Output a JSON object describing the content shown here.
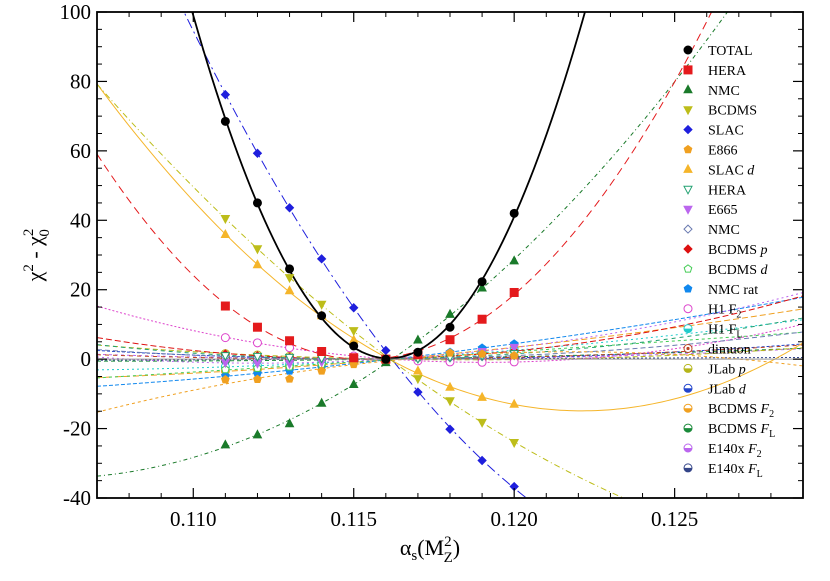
{
  "chart_data": {
    "type": "scatter",
    "title": "",
    "xlabel": "αs(MZ2)",
    "ylabel": "χ2 - χ02",
    "xlabel_parts": {
      "main": "α",
      "sub": "s",
      "open": "(M",
      "sup": "2",
      "sub2": "Z",
      "close": ")"
    },
    "ylabel_parts": {
      "chi1": "χ",
      "sup1": "2",
      "minus": " - ",
      "chi2": "χ",
      "sup2": "2",
      "sub2": "0"
    },
    "xlim": [
      0.107,
      0.129
    ],
    "ylim": [
      -40,
      100
    ],
    "xticks": [
      0.11,
      0.115,
      0.12,
      0.125
    ],
    "xtick_labels": [
      "0.110",
      "0.115",
      "0.120",
      "0.125"
    ],
    "yticks": [
      -40,
      -20,
      0,
      20,
      40,
      60,
      80,
      100
    ],
    "ytick_labels": [
      "-40",
      "-20",
      "0",
      "20",
      "40",
      "60",
      "80",
      "100"
    ],
    "grid": false,
    "legend_position": "top-right",
    "x": [
      0.111,
      0.112,
      0.113,
      0.114,
      0.115,
      0.116,
      0.117,
      0.118,
      0.119,
      0.12
    ],
    "series": [
      {
        "name": "TOTAL",
        "marker": "circle",
        "color": "#000000",
        "dash": "",
        "fit": [
          0.116,
          1900,
          0
        ],
        "values": [
          68.5,
          45,
          26,
          12.5,
          3.8,
          0,
          2,
          9.2,
          22.3,
          42
        ]
      },
      {
        "name": "HERA",
        "marker": "square",
        "color": "#e41a1c",
        "dash": "8,5",
        "fit": [
          0.1165,
          1043,
          0
        ],
        "values": [
          15.3,
          9.2,
          5.3,
          2.2,
          0.4,
          0,
          1.3,
          5.6,
          11.5,
          19.2
        ]
      },
      {
        "name": "NMC",
        "marker": "triangle-up",
        "color": "#1a7a2a",
        "dash": "4,3,1,3",
        "fit": [
          0.1,
          0,
          0
        ],
        "values": [
          -24.7,
          -21.8,
          -18.6,
          -12.7,
          -7.3,
          -1,
          5.5,
          12.9,
          20.5,
          28.3
        ]
      },
      {
        "name": "BCDMS",
        "marker": "triangle-down",
        "color": "#bdbd1a",
        "dash": "6,3,1,3",
        "fit": [
          0.1,
          0,
          0
        ],
        "values": [
          40.5,
          31.8,
          23.5,
          15.8,
          8.2,
          0,
          -5.6,
          -12,
          -18.2,
          -24
        ]
      },
      {
        "name": "SLAC",
        "marker": "diamond",
        "color": "#1f1fdd",
        "dash": "10,4,2,4",
        "fit": [
          0.1,
          0,
          0
        ],
        "values": [
          76.2,
          59.3,
          43.6,
          28.9,
          14.8,
          2.5,
          -9.5,
          -20.2,
          -29.2,
          -36.7
        ]
      },
      {
        "name": "E866",
        "marker": "pentagon",
        "color": "#f0a020",
        "dash": "3,3",
        "fit": [
          0.1,
          0,
          0
        ],
        "values": [
          -5.9,
          -5.8,
          -5.7,
          -3.4,
          -1.5,
          0,
          1,
          1.8,
          1.5,
          1
        ]
      },
      {
        "name": "SLAC d",
        "marker": "triangle-up",
        "color": "#f5b52a",
        "dash": "",
        "fit": [
          0.1,
          0,
          0
        ],
        "values": [
          35.9,
          27.2,
          19.7,
          12.5,
          5.5,
          0,
          -3.4,
          -8.1,
          -11,
          -13
        ]
      },
      {
        "name": "HERA",
        "marker": "triangle-down-open",
        "color": "#20a070",
        "dash": "4,4",
        "fit": [
          0.1,
          0,
          0
        ],
        "values": [
          1,
          0.8,
          0.5,
          0.3,
          0.1,
          0,
          0.2,
          0.6,
          1,
          1.6
        ]
      },
      {
        "name": "E665",
        "marker": "triangle-down",
        "color": "#bb66ee",
        "dash": "2,3",
        "fit": [
          0.1,
          0,
          0
        ],
        "values": [
          -1,
          -1.2,
          -1.3,
          -0.8,
          -0.4,
          0,
          0.6,
          1.3,
          2.2,
          3.4
        ]
      },
      {
        "name": "NMC",
        "marker": "diamond-open",
        "color": "#6a7ab0",
        "dash": "5,3",
        "fit": [
          0.1,
          0,
          0
        ],
        "values": [
          0.7,
          0.5,
          0.3,
          0.2,
          0,
          0,
          0.2,
          0.4,
          0.7,
          1
        ]
      },
      {
        "name": "BCDMS p",
        "marker": "diamond",
        "color": "#dd1010",
        "dash": "6,3",
        "fit": [
          0.1,
          0,
          0
        ],
        "values": [
          1.5,
          1,
          0.6,
          0.3,
          0.1,
          0,
          0.3,
          0.8,
          1.5,
          2.4
        ]
      },
      {
        "name": "BCDMS d",
        "marker": "pentagon-open",
        "color": "#44cc55",
        "dash": "3,3",
        "fit": [
          0.1,
          0,
          0
        ],
        "values": [
          -3,
          -2.6,
          -2.2,
          -1.5,
          -0.7,
          0,
          0.4,
          0.9,
          1.5,
          2.2
        ]
      },
      {
        "name": "NMC rat",
        "marker": "pentagon",
        "color": "#1188ee",
        "dash": "4,2",
        "fit": [
          0.1,
          0,
          0
        ],
        "values": [
          -4.8,
          -4.1,
          -3.4,
          -2.4,
          -1.2,
          0,
          0.9,
          2,
          3.2,
          4.4
        ]
      },
      {
        "name": "H1 F2",
        "marker": "circle-open",
        "color": "#dd44cc",
        "dash": "2,2",
        "fit": [
          0.1,
          0,
          0
        ],
        "values": [
          6.2,
          4.7,
          3.3,
          2,
          0.9,
          0,
          -0.5,
          -0.8,
          -0.9,
          -0.8
        ]
      },
      {
        "name": "H1 FL",
        "marker": "circle-half",
        "color": "#22cccc",
        "dash": "2,3",
        "fit": [
          0.1,
          0,
          0
        ],
        "values": [
          -2.2,
          -1.9,
          -1.6,
          -1.1,
          -0.5,
          0,
          0.5,
          1.1,
          1.8,
          2.6
        ]
      },
      {
        "name": "dimuon",
        "marker": "circle-dot",
        "color": "#bb4422",
        "dash": "4,4",
        "fit": [
          0.1,
          0,
          0
        ],
        "values": [
          0.3,
          0.2,
          0.1,
          0,
          0,
          0,
          0.1,
          0.2,
          0.4,
          0.5
        ]
      },
      {
        "name": "JLab p",
        "marker": "circle-half",
        "color": "#b5b51a",
        "dash": "5,3",
        "fit": [
          0.1,
          0,
          0
        ],
        "values": [
          1.6,
          1.2,
          0.8,
          0.5,
          0.2,
          0,
          -0.1,
          -0.2,
          -0.2,
          -0.1
        ]
      },
      {
        "name": "JLab d",
        "marker": "circle-half",
        "color": "#2244cc",
        "dash": "3,2",
        "fit": [
          0.1,
          0,
          0
        ],
        "values": [
          0.8,
          0.6,
          0.4,
          0.2,
          0.1,
          0,
          0,
          0.1,
          0.2,
          0.4
        ]
      },
      {
        "name": "BCDMS F2",
        "marker": "circle-half",
        "color": "#f0a020",
        "dash": "6,3",
        "fit": [
          0.1,
          0,
          0
        ],
        "values": [
          -3.4,
          -3,
          -2.5,
          -1.8,
          -0.9,
          0,
          0.7,
          1.5,
          2.4,
          3.4
        ]
      },
      {
        "name": "BCDMS FL",
        "marker": "circle-half",
        "color": "#1a8a3a",
        "dash": "4,3",
        "fit": [
          0.1,
          0,
          0
        ],
        "values": [
          -0.5,
          -0.4,
          -0.3,
          -0.2,
          -0.1,
          0,
          0.1,
          0.3,
          0.5,
          0.7
        ]
      },
      {
        "name": "E140x F2",
        "marker": "circle-half",
        "color": "#bb66ee",
        "dash": "3,3",
        "fit": [
          0.1,
          0,
          0
        ],
        "values": [
          0.4,
          0.3,
          0.2,
          0.1,
          0,
          0,
          0,
          0.1,
          0.2,
          0.3
        ]
      },
      {
        "name": "E140x FL",
        "marker": "circle-half",
        "color": "#334488",
        "dash": "2,2",
        "fit": [
          0.1,
          0,
          0
        ],
        "values": [
          -0.2,
          -0.1,
          -0.1,
          0,
          0,
          0,
          0,
          0.1,
          0.1,
          0.2
        ]
      }
    ],
    "legend_labels": [
      {
        "main": "TOTAL",
        "italic": "",
        "sub": ""
      },
      {
        "main": "HERA",
        "italic": "",
        "sub": ""
      },
      {
        "main": "NMC",
        "italic": "",
        "sub": ""
      },
      {
        "main": "BCDMS",
        "italic": "",
        "sub": ""
      },
      {
        "main": "SLAC",
        "italic": "",
        "sub": ""
      },
      {
        "main": "E866",
        "italic": "",
        "sub": ""
      },
      {
        "main": "SLAC ",
        "italic": "d",
        "sub": ""
      },
      {
        "main": "HERA",
        "italic": "",
        "sub": ""
      },
      {
        "main": "E665",
        "italic": "",
        "sub": ""
      },
      {
        "main": "NMC",
        "italic": "",
        "sub": ""
      },
      {
        "main": "BCDMS ",
        "italic": "p",
        "sub": ""
      },
      {
        "main": "BCDMS ",
        "italic": "d",
        "sub": ""
      },
      {
        "main": "NMC rat",
        "italic": "",
        "sub": ""
      },
      {
        "main": "H1 F",
        "italic": "",
        "sub": "2"
      },
      {
        "main": "H1 F",
        "italic": "",
        "sub": "L"
      },
      {
        "main": "dimuon",
        "italic": "",
        "sub": ""
      },
      {
        "main": "JLab ",
        "italic": "p",
        "sub": ""
      },
      {
        "main": "JLab ",
        "italic": "d",
        "sub": ""
      },
      {
        "main": "BCDMS ",
        "italic": "F",
        "sub": "2"
      },
      {
        "main": "BCDMS ",
        "italic": "F",
        "sub": "L"
      },
      {
        "main": "E140x ",
        "italic": "F",
        "sub": "2"
      },
      {
        "main": "E140x ",
        "italic": "F",
        "sub": "L"
      }
    ]
  }
}
